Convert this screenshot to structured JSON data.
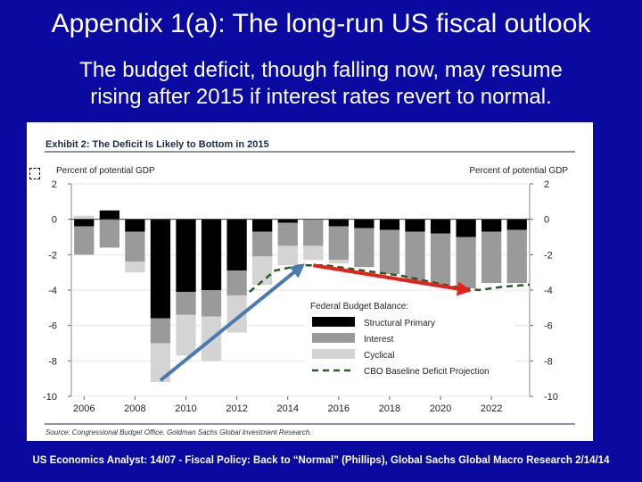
{
  "slide": {
    "title": "Appendix 1(a): The long-run US fiscal outlook",
    "subtitle_line1": "The budget deficit, though falling now, may resume",
    "subtitle_line2": "rising after 2015 if interest rates revert to normal.",
    "footer": "US Economics Analyst: 14/07 - Fiscal Policy: Back to “Normal” (Phillips), Global Sachs Global Macro Research 2/14/14"
  },
  "colors": {
    "background": "#0a0aa0",
    "structural": "#000000",
    "interest": "#9a9a9a",
    "cyclical": "#d4d4d4",
    "projection": "#2a5a2a",
    "red_arrow": "#e8201c",
    "blue_arrow": "#4a7ab0"
  },
  "chart_data": {
    "type": "bar",
    "title": "Exhibit 2: The Deficit Is Likely to Bottom in 2015",
    "ylabel_left": "Percent of potential GDP",
    "ylabel_right": "Percent of potential GDP",
    "ylim": [
      -10,
      2
    ],
    "yticks": [
      2,
      0,
      -2,
      -4,
      -6,
      -8,
      -10
    ],
    "xtick_labels": [
      "2006",
      "2008",
      "2010",
      "2012",
      "2014",
      "2016",
      "2018",
      "2020",
      "2022"
    ],
    "years": [
      2006,
      2007,
      2008,
      2009,
      2010,
      2011,
      2012,
      2013,
      2014,
      2015,
      2016,
      2017,
      2018,
      2019,
      2020,
      2021,
      2022,
      2023
    ],
    "series": [
      {
        "name": "Structural Primary",
        "values": [
          -0.4,
          0.5,
          -0.7,
          -5.6,
          -4.1,
          -4.0,
          -2.9,
          -0.7,
          -0.2,
          0.0,
          -0.4,
          -0.5,
          -0.6,
          -0.7,
          -0.8,
          -1.0,
          -0.7,
          -0.6
        ]
      },
      {
        "name": "Interest",
        "values": [
          -1.6,
          -1.6,
          -1.7,
          -1.4,
          -1.3,
          -1.5,
          -1.4,
          -1.4,
          -1.3,
          -1.5,
          -1.9,
          -2.2,
          -2.5,
          -2.8,
          -2.9,
          -2.9,
          -2.9,
          -3.0
        ]
      },
      {
        "name": "Cyclical",
        "values": [
          0.0,
          0.0,
          -0.6,
          -2.2,
          -2.3,
          -2.5,
          -2.1,
          -1.6,
          -1.1,
          -0.8,
          -0.2,
          0.0,
          0.0,
          0.0,
          0.0,
          0.0,
          0.0,
          0.0
        ]
      }
    ],
    "positive_series": {
      "name": "Interest (positive)",
      "values": [
        0.2,
        0.0,
        0.0,
        0.0,
        0.0,
        0.0,
        0.0,
        0.0,
        0.0,
        0.0,
        0.0,
        0.0,
        0.0,
        0.0,
        0.0,
        0.0,
        0.0,
        0.0
      ]
    },
    "projection": {
      "name": "CBO Baseline Deficit Projection",
      "x": [
        2012.5,
        2013.5,
        2014.5,
        2015.5,
        2016.5,
        2017.5,
        2018.5,
        2019.5,
        2020.5,
        2021.5,
        2022.5,
        2023.5
      ],
      "y": [
        -4.1,
        -2.9,
        -2.6,
        -2.6,
        -2.8,
        -3.0,
        -3.2,
        -3.5,
        -3.8,
        -4.0,
        -3.8,
        -3.7
      ]
    },
    "arrows": [
      {
        "name": "blue-arrow",
        "from": [
          2009,
          -9.1
        ],
        "to": [
          2014.5,
          -2.7
        ]
      },
      {
        "name": "red-arrow",
        "from": [
          2015,
          -2.6
        ],
        "to": [
          2021,
          -4.0
        ]
      }
    ],
    "legend": {
      "title": "Federal Budget Balance:",
      "items": [
        "Structural Primary",
        "Interest",
        "Cyclical",
        "CBO Baseline Deficit Projection"
      ],
      "position": "lower-right"
    },
    "source": "Source: Congressional Budget Office. Goldman Sachs Global Investment Research."
  }
}
